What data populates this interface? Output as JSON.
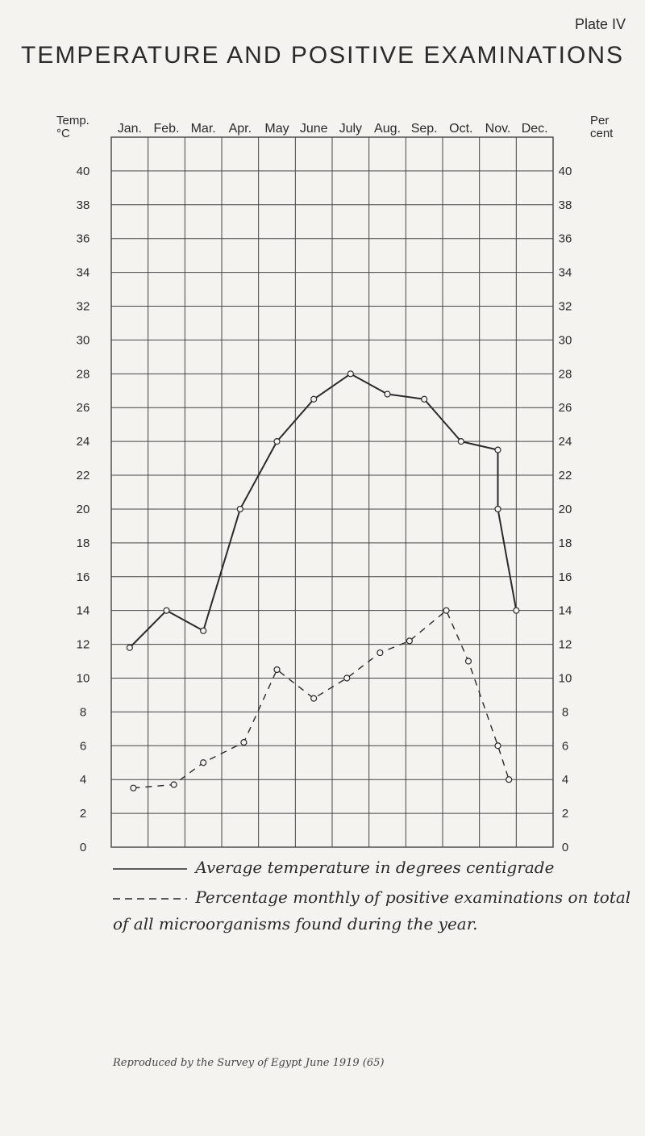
{
  "plate": "Plate IV",
  "title": "TEMPERATURE AND POSITIVE EXAMINATIONS",
  "corner_left": [
    "Temp.",
    "°C"
  ],
  "corner_right": [
    "Per",
    "cent"
  ],
  "legend": {
    "solid_label": "Average temperature in degrees centigrade",
    "dashed_label": "Percentage monthly of positive examinations on total",
    "dashed_label_line2": "of all microorganisms found during the year."
  },
  "credit": "Reproduced by the Survey of Egypt June 1919 (65)",
  "colors": {
    "line": "#2a2a2a",
    "grid": "#444444",
    "background": "#f4f3ef"
  },
  "chart_data": {
    "type": "line",
    "title": "TEMPERATURE AND POSITIVE EXAMINATIONS",
    "categories": [
      "Jan.",
      "Feb.",
      "Mar.",
      "Apr.",
      "May",
      "June",
      "July",
      "Aug.",
      "Sep.",
      "Oct.",
      "Nov.",
      "Dec."
    ],
    "ylabel_left": "Temp. °C",
    "ylabel_right": "Per cent",
    "yticks": [
      0,
      2,
      4,
      6,
      8,
      10,
      12,
      14,
      16,
      18,
      20,
      22,
      24,
      26,
      28,
      30,
      32,
      34,
      36,
      38,
      40
    ],
    "ylim": [
      0,
      42
    ],
    "grid": true,
    "series": [
      {
        "name": "Average temperature in degrees centigrade",
        "style": "solid",
        "x": [
          0.5,
          1.5,
          2.5,
          3.5,
          4.5,
          5.5,
          6.5,
          7.5,
          8.5,
          9.5,
          10.5,
          10.5,
          11.0
        ],
        "values": [
          11.8,
          14.0,
          12.8,
          20.0,
          24.0,
          26.5,
          28.0,
          26.8,
          26.5,
          24.0,
          23.5,
          20.0,
          14.0
        ]
      },
      {
        "name": "Percentage monthly of positive examinations on total of all microorganisms found during the year.",
        "style": "dashed",
        "x": [
          0.6,
          1.7,
          2.5,
          3.6,
          4.5,
          5.5,
          6.4,
          7.3,
          8.1,
          9.1,
          9.7,
          10.5,
          10.8
        ],
        "values": [
          3.5,
          3.7,
          5.0,
          6.2,
          10.5,
          8.8,
          10.0,
          11.5,
          12.2,
          14.0,
          11.0,
          6.0,
          4.0
        ]
      }
    ]
  }
}
